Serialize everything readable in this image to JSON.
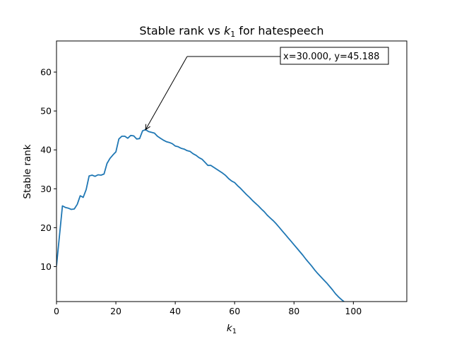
{
  "chart_data": {
    "type": "line",
    "title": "Stable rank vs ",
    "title_symbol": "k",
    "title_subscript": "1",
    "title_suffix": " for hatespeech",
    "xlabel_symbol": "k",
    "xlabel_subscript": "1",
    "ylabel": "Stable rank",
    "xlim": [
      0,
      118
    ],
    "ylim": [
      1,
      68
    ],
    "xticks": [
      0,
      20,
      40,
      60,
      80,
      100
    ],
    "yticks": [
      10,
      20,
      30,
      40,
      50,
      60
    ],
    "xtick_labels": [
      "0",
      "20",
      "40",
      "60",
      "80",
      "100"
    ],
    "ytick_labels": [
      "10",
      "20",
      "30",
      "40",
      "50",
      "60"
    ],
    "grid": false,
    "series": [
      {
        "color": "#1f77b4",
        "x": [
          0,
          2,
          3,
          4,
          5,
          6,
          7,
          8,
          9,
          10,
          11,
          12,
          13,
          14,
          15,
          16,
          17,
          18,
          19,
          20,
          21,
          22,
          23,
          24,
          25,
          26,
          27,
          28,
          29,
          30,
          31,
          32,
          33,
          34,
          35,
          36,
          37,
          38,
          39,
          40,
          41,
          42,
          43,
          44,
          45,
          46,
          47,
          48,
          49,
          50,
          51,
          52,
          53,
          54,
          55,
          56,
          57,
          58,
          59,
          60,
          61,
          62,
          63,
          64,
          65,
          66,
          67,
          68,
          69,
          70,
          71,
          72,
          73,
          74,
          75,
          76,
          77,
          78,
          79,
          80,
          81,
          82,
          83,
          84,
          85,
          86,
          87,
          88,
          89,
          90,
          91,
          92,
          93,
          94,
          95,
          96,
          97,
          98,
          99,
          100
        ],
        "y": [
          10.2,
          25.6,
          25.2,
          25.0,
          24.7,
          24.8,
          26.0,
          28.2,
          27.8,
          29.8,
          33.3,
          33.5,
          33.2,
          33.6,
          33.5,
          33.8,
          36.5,
          37.8,
          38.7,
          39.5,
          42.8,
          43.5,
          43.5,
          43.0,
          43.7,
          43.6,
          42.8,
          42.9,
          44.9,
          45.188,
          44.7,
          44.5,
          44.3,
          43.5,
          43.0,
          42.5,
          42.1,
          41.9,
          41.6,
          41.0,
          40.8,
          40.4,
          40.2,
          39.8,
          39.6,
          39.0,
          38.6,
          38.0,
          37.6,
          36.8,
          36.0,
          36.0,
          35.5,
          35.0,
          34.5,
          34.0,
          33.4,
          32.6,
          32.0,
          31.6,
          30.8,
          30.1,
          29.3,
          28.5,
          27.8,
          27.0,
          26.3,
          25.6,
          24.8,
          24.1,
          23.2,
          22.5,
          21.8,
          21.0,
          20.1,
          19.2,
          18.3,
          17.4,
          16.5,
          15.6,
          14.7,
          13.8,
          12.9,
          11.9,
          11.0,
          10.1,
          9.1,
          8.2,
          7.4,
          6.6,
          5.8,
          4.9,
          4.0,
          3.0,
          2.2,
          1.5,
          0.9,
          0.6,
          0.5,
          0.5
        ]
      }
    ],
    "annotation": {
      "text": "x=30.000, y=45.188",
      "point": [
        30.0,
        45.188
      ],
      "text_anchor_point": [
        44.0,
        64.0
      ]
    }
  }
}
